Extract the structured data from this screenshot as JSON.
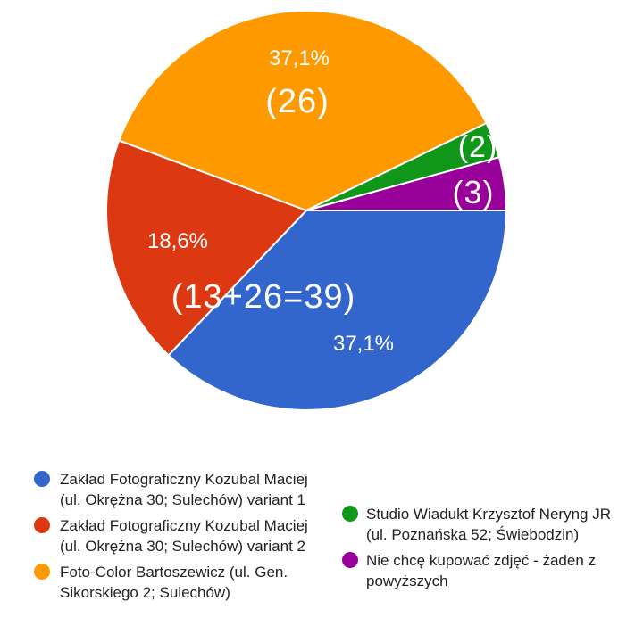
{
  "chart_data": {
    "type": "pie",
    "slices": [
      {
        "label": "Zakład Fotograficzny Kozubal Maciej (ul. Okrężna 30; Sulechów) variant 1",
        "legend_lines": [
          "Zakład Fotograficzny Kozubal Maciej",
          "(ul. Okrężna 30; Sulechów) variant 1"
        ],
        "percent": 37.1,
        "color": "#3366cc",
        "percent_label": "37,1%"
      },
      {
        "label": "Zakład Fotograficzny Kozubal Maciej (ul. Okrężna 30; Sulechów) variant 2",
        "legend_lines": [
          "Zakład Fotograficzny Kozubal Maciej",
          "(ul. Okrężna 30; Sulechów) variant 2"
        ],
        "percent": 18.6,
        "color": "#dc3912",
        "percent_label": "18,6%"
      },
      {
        "label": "Foto-Color Bartoszewicz (ul. Gen. Sikorskiego 2; Sulechów)",
        "legend_lines": [
          "Foto-Color Bartoszewicz (ul. Gen.",
          "Sikorskiego 2; Sulechów)"
        ],
        "percent": 37.1,
        "color": "#ff9900",
        "percent_label": "37,1%",
        "count_label": "(26)"
      },
      {
        "label": "Studio Wiadukt Krzysztof Neryng JR (ul. Poznańska 52; Świebodzin)",
        "legend_lines": [
          "Studio Wiadukt Krzysztof Neryng JR",
          "(ul. Poznańska 52; Świebodzin)"
        ],
        "percent": 2.9,
        "color": "#109618",
        "count_label": "(2)"
      },
      {
        "label": "Nie chcę kupować zdjęć - żaden z powyższych",
        "legend_lines": [
          "Nie chcę kupować zdjęć - żaden z",
          "powyższych"
        ],
        "percent": 4.3,
        "color": "#990099",
        "count_label": "(3)"
      }
    ],
    "annotations": [
      "(13+26=39)"
    ],
    "legend_position": "bottom"
  }
}
